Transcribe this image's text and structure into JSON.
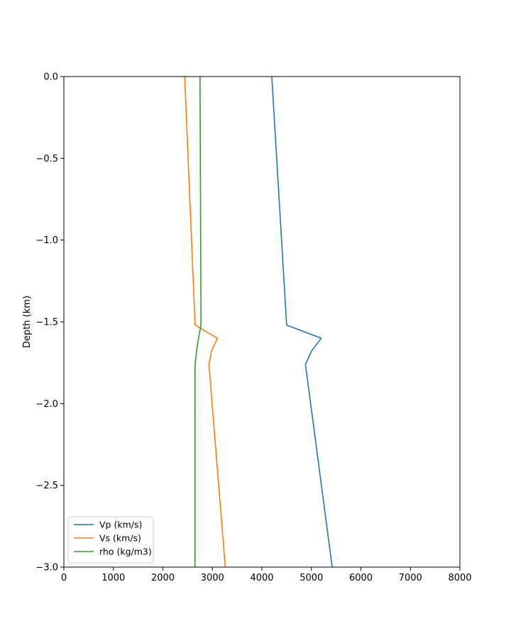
{
  "chart_data": {
    "type": "line",
    "title": "",
    "xlabel": "",
    "ylabel": "Depth (km)",
    "xlim": [
      0,
      8000
    ],
    "ylim": [
      -3.0,
      0.0
    ],
    "x_ticks": [
      0,
      1000,
      2000,
      3000,
      4000,
      5000,
      6000,
      7000,
      8000
    ],
    "y_ticks": [
      0.0,
      -0.5,
      -1.0,
      -1.5,
      -2.0,
      -2.5,
      -3.0
    ],
    "x_tick_labels": [
      "0",
      "1000",
      "2000",
      "3000",
      "4000",
      "5000",
      "6000",
      "7000",
      "8000"
    ],
    "y_tick_labels": [
      "0.0",
      "−0.5",
      "−1.0",
      "−1.5",
      "−2.0",
      "−2.5",
      "−3.0"
    ],
    "grid": false,
    "legend": "lower-left",
    "series": [
      {
        "name": "Vp (km/s)",
        "color": "#1f77b4",
        "points": [
          [
            4200,
            0.0
          ],
          [
            4500,
            -1.52
          ],
          [
            5200,
            -1.6
          ],
          [
            5000,
            -1.68
          ],
          [
            4880,
            -1.76
          ],
          [
            5420,
            -3.0
          ]
        ]
      },
      {
        "name": "Vs (km/s)",
        "color": "#ff7f0e",
        "points": [
          [
            2440,
            0.0
          ],
          [
            2650,
            -1.52
          ],
          [
            3100,
            -1.6
          ],
          [
            2980,
            -1.68
          ],
          [
            2930,
            -1.76
          ],
          [
            3260,
            -3.0
          ]
        ]
      },
      {
        "name": "rho (kg/m3)",
        "color": "#2ca02c",
        "points": [
          [
            2750,
            0.0
          ],
          [
            2770,
            -1.52
          ],
          [
            2720,
            -1.6
          ],
          [
            2680,
            -1.68
          ],
          [
            2650,
            -1.76
          ],
          [
            2650,
            -3.0
          ]
        ]
      }
    ]
  }
}
